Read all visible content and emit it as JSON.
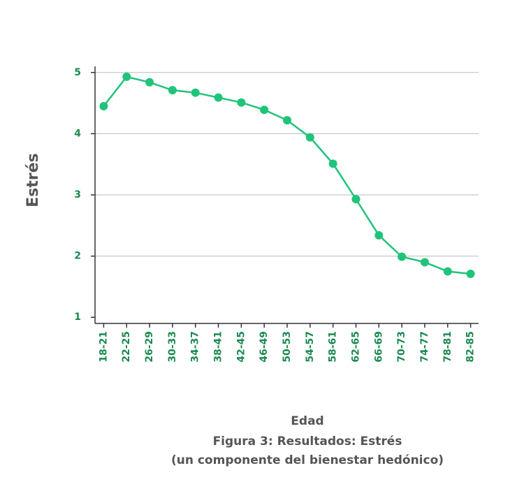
{
  "chart_data": {
    "type": "line",
    "categories": [
      "18-21",
      "22-25",
      "26-29",
      "30-33",
      "34-37",
      "38-41",
      "42-45",
      "46-49",
      "50-53",
      "54-57",
      "58-61",
      "62-65",
      "66-69",
      "70-73",
      "74-77",
      "78-81",
      "82-85"
    ],
    "series": [
      {
        "name": "Estrés",
        "color": "#1fc47a",
        "values": [
          4.45,
          4.93,
          4.84,
          4.71,
          4.67,
          4.59,
          4.51,
          4.39,
          4.22,
          3.94,
          3.51,
          2.93,
          2.34,
          1.99,
          1.9,
          1.75,
          1.71
        ]
      }
    ],
    "ylim": [
      0.9,
      5.1
    ],
    "yticks": [
      1,
      2,
      3,
      4,
      5
    ],
    "grid": true,
    "ylabel": "Estrés",
    "xlabel": "Edad",
    "caption": [
      "Figura 3: Resultados: Estrés",
      "(un componente del bienestar hedónico)"
    ]
  }
}
